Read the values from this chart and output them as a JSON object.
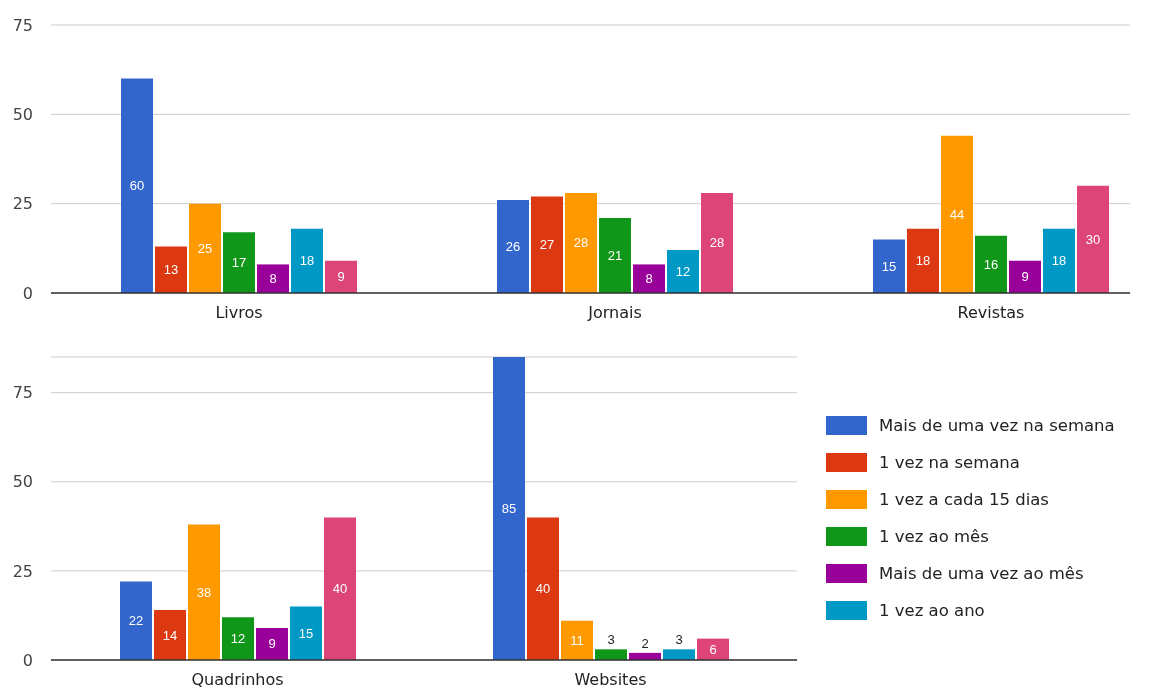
{
  "chart_data": [
    {
      "type": "bar",
      "categories": [
        "Livros",
        "Jornais",
        "Revistas"
      ],
      "series": [
        {
          "color": "#3366cc",
          "values": [
            60,
            26,
            15
          ]
        },
        {
          "color": "#dc3912",
          "values": [
            13,
            27,
            18
          ]
        },
        {
          "color": "#ff9900",
          "values": [
            25,
            28,
            44
          ]
        },
        {
          "color": "#109618",
          "values": [
            17,
            21,
            16
          ]
        },
        {
          "color": "#990099",
          "values": [
            8,
            8,
            9
          ]
        },
        {
          "color": "#0099c6",
          "values": [
            18,
            12,
            18
          ]
        },
        {
          "color": "#dd4477",
          "values": [
            9,
            28,
            30
          ]
        }
      ],
      "ylim": [
        0,
        75
      ],
      "yticks": [
        0,
        25,
        50,
        75
      ],
      "grid": "y",
      "data_labels": true
    },
    {
      "type": "bar",
      "categories": [
        "Quadrinhos",
        "Websites"
      ],
      "series": [
        {
          "name": "Mais de uma vez na semana",
          "color": "#3366cc",
          "values": [
            22,
            85
          ]
        },
        {
          "name": "1 vez na semana",
          "color": "#dc3912",
          "values": [
            14,
            40
          ]
        },
        {
          "name": "1 vez a cada 15 dias",
          "color": "#ff9900",
          "values": [
            38,
            11
          ]
        },
        {
          "name": "1 vez ao mês",
          "color": "#109618",
          "values": [
            12,
            3
          ]
        },
        {
          "name": "Mais de uma vez ao mês",
          "color": "#990099",
          "values": [
            9,
            2
          ]
        },
        {
          "name": "1 vez ao ano",
          "color": "#0099c6",
          "values": [
            15,
            3
          ]
        },
        {
          "color": "#dd4477",
          "values": [
            40,
            6
          ]
        }
      ],
      "ylim": [
        0,
        85
      ],
      "yticks": [
        0,
        25,
        50,
        75
      ],
      "grid": "y",
      "data_labels": true,
      "legend": "right"
    }
  ]
}
